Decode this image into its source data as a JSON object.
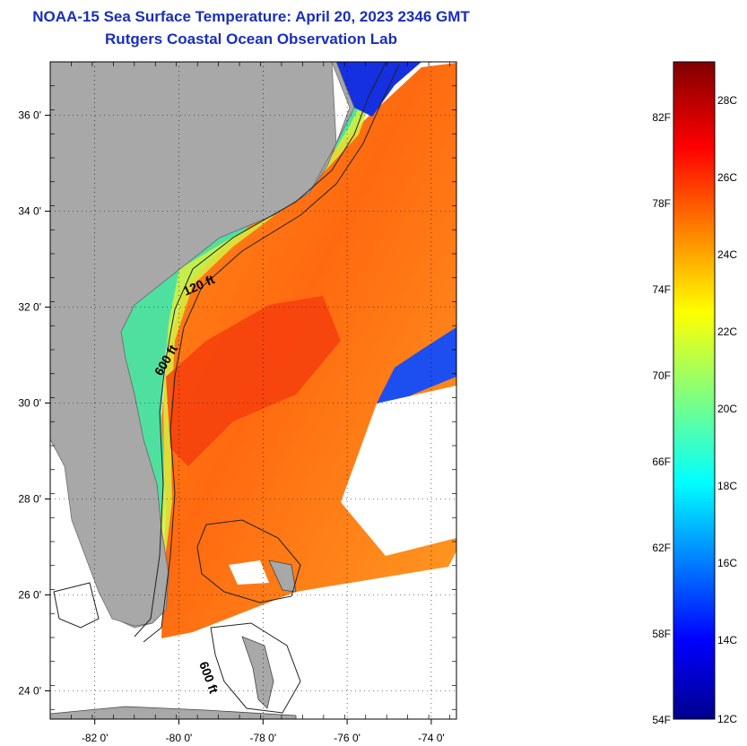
{
  "title": {
    "line1": "NOAA-15 Sea Surface Temperature:  April 20, 2023 2346 GMT",
    "line2": "Rutgers Coastal Ocean Observation Lab"
  },
  "map": {
    "lon_ticks": [
      {
        "lon": -82,
        "label": "-82 0'"
      },
      {
        "lon": -80,
        "label": "-80 0'"
      },
      {
        "lon": -78,
        "label": "-78 0'"
      },
      {
        "lon": -76,
        "label": "-76 0'"
      },
      {
        "lon": -74,
        "label": "-74 0'"
      }
    ],
    "lat_ticks": [
      {
        "lat": 36,
        "label": "36 0'"
      },
      {
        "lat": 34,
        "label": "34 0'"
      },
      {
        "lat": 32,
        "label": "32 0'"
      },
      {
        "lat": 30,
        "label": "30 0'"
      },
      {
        "lat": 28,
        "label": "28 0'"
      },
      {
        "lat": 26,
        "label": "26 0'"
      },
      {
        "lat": 24,
        "label": "24 0'"
      }
    ],
    "lon_range": [
      -83,
      -73
    ],
    "lat_range": [
      23,
      37
    ],
    "grid": "dotted",
    "contour_labels": [
      "120 ft",
      "600 ft",
      "600 ft"
    ],
    "land_color": "#a8a8a8"
  },
  "colorbar": {
    "fahrenheit_labels": [
      "82F",
      "78F",
      "74F",
      "70F",
      "66F",
      "62F",
      "58F",
      "54F"
    ],
    "celsius_labels": [
      "28C",
      "26C",
      "24C",
      "22C",
      "20C",
      "18C",
      "16C",
      "14C",
      "12C"
    ],
    "scale": "jet",
    "range_celsius": [
      12,
      29.2
    ]
  }
}
